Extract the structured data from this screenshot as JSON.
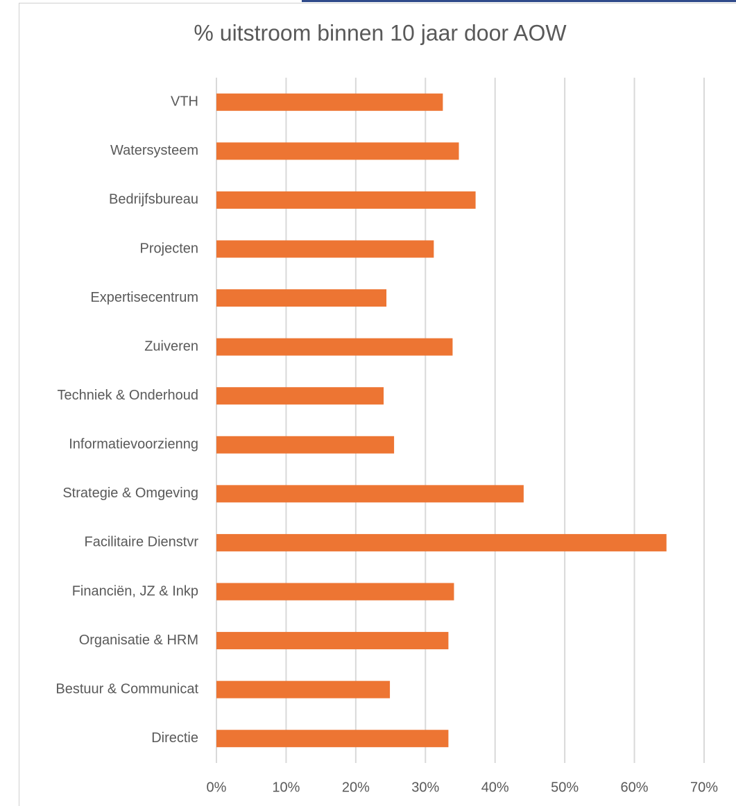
{
  "chart_data": {
    "type": "bar",
    "orientation": "horizontal",
    "title": "% uitstroom binnen 10 jaar door AOW",
    "categories": [
      "VTH",
      "Watersysteem",
      "Bedrijfsbureau",
      "Projecten",
      "Expertisecentrum",
      "Zuiveren",
      "Techniek & Onderhoud",
      "Informatievoorzienng",
      "Strategie & Omgeving",
      "Facilitaire Dienstvr",
      "Financiën, JZ & Inkp",
      "Organisatie & HRM",
      "Bestuur & Communicat",
      "Directie"
    ],
    "values": [
      32.5,
      34.8,
      37.2,
      31.2,
      24.4,
      33.9,
      24.0,
      25.5,
      44.1,
      64.6,
      34.1,
      33.3,
      24.9,
      33.3
    ],
    "color": "#ed7533",
    "xlim": [
      0,
      70
    ],
    "xticks": [
      {
        "value": 0,
        "label": "0%"
      },
      {
        "value": 10,
        "label": "10%"
      },
      {
        "value": 20,
        "label": "20%"
      },
      {
        "value": 30,
        "label": "30%"
      },
      {
        "value": 40,
        "label": "40%"
      },
      {
        "value": 50,
        "label": "50%"
      },
      {
        "value": 60,
        "label": "60%"
      },
      {
        "value": 70,
        "label": "70%"
      }
    ],
    "grid": true
  }
}
